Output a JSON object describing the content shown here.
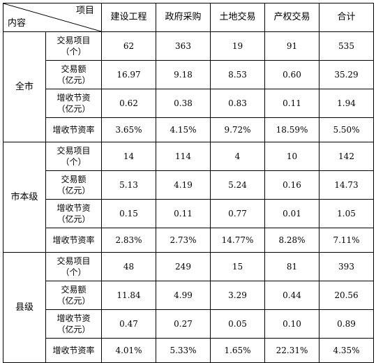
{
  "header": {
    "corner_top": "项目",
    "corner_bottom": "内容",
    "columns": [
      "建设工程",
      "政府采购",
      "土地交易",
      "产权交易",
      "合计"
    ]
  },
  "groups": [
    {
      "region": "全市",
      "rows": [
        {
          "metric_line1": "交易项目",
          "metric_line2": "（个）",
          "values": [
            "62",
            "363",
            "19",
            "91",
            "535"
          ]
        },
        {
          "metric_line1": "交易额",
          "metric_line2": "（亿元）",
          "values": [
            "16.97",
            "9.18",
            "8.53",
            "0.60",
            "35.29"
          ]
        },
        {
          "metric_line1": "增收节资",
          "metric_line2": "（亿元）",
          "values": [
            "0.62",
            "0.38",
            "0.83",
            "0.11",
            "1.94"
          ]
        },
        {
          "metric_line1": "增收节资率",
          "metric_line2": "",
          "values": [
            "3.65%",
            "4.15%",
            "9.72%",
            "18.59%",
            "5.50%"
          ]
        }
      ]
    },
    {
      "region": "市本级",
      "rows": [
        {
          "metric_line1": "交易项目",
          "metric_line2": "（个）",
          "values": [
            "14",
            "114",
            "4",
            "10",
            "142"
          ]
        },
        {
          "metric_line1": "交易额",
          "metric_line2": "（亿元）",
          "values": [
            "5.13",
            "4.19",
            "5.24",
            "0.16",
            "14.73"
          ]
        },
        {
          "metric_line1": "增收节资",
          "metric_line2": "（亿元）",
          "values": [
            "0.15",
            "0.11",
            "0.77",
            "0.01",
            "1.05"
          ]
        },
        {
          "metric_line1": "增收节资率",
          "metric_line2": "",
          "values": [
            "2.83%",
            "2.73%",
            "14.77%",
            "8.28%",
            "7.11%"
          ]
        }
      ]
    },
    {
      "region": "县级",
      "rows": [
        {
          "metric_line1": "交易项目",
          "metric_line2": "（个）",
          "values": [
            "48",
            "249",
            "15",
            "81",
            "393"
          ]
        },
        {
          "metric_line1": "交易额",
          "metric_line2": "（亿元）",
          "values": [
            "11.84",
            "4.99",
            "3.29",
            "0.44",
            "20.56"
          ]
        },
        {
          "metric_line1": "增收节资",
          "metric_line2": "（亿元）",
          "values": [
            "0.47",
            "0.27",
            "0.05",
            "0.10",
            "0.89"
          ]
        },
        {
          "metric_line1": "增收节资率",
          "metric_line2": "",
          "values": [
            "4.01%",
            "5.33%",
            "1.65%",
            "22.31%",
            "4.35%"
          ]
        }
      ]
    }
  ]
}
